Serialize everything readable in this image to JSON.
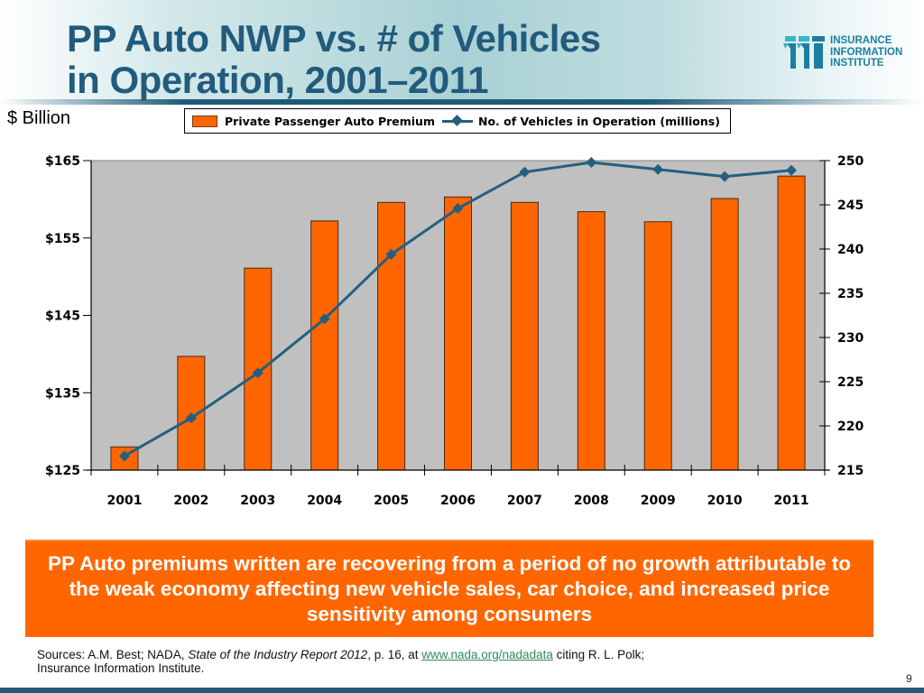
{
  "slide": {
    "title_line1": "PP Auto NWP vs. # of Vehicles",
    "title_line2": "in Operation, 2001–2011",
    "units_label": "$ Billion",
    "logo": {
      "line1": "INSURANCE",
      "line2": "INFORMATION",
      "line3": "INSTITUTE",
      "icon": "iii-logo-icon"
    },
    "callout": "PP Auto premiums written are recovering from a period of no growth attributable to the weak economy affecting new vehicle sales, car choice, and increased price sensitivity among consumers",
    "sources": {
      "prefix": "Sources: A.M. Best; NADA, ",
      "report_title": "State of the Industry Report 2012",
      "mid": ", p. 16, at ",
      "link_text": "www.nada.org/nadadata",
      "suffix": " citing R. L. Polk;",
      "line2": "Insurance Information Institute."
    },
    "page_number": "9",
    "colors": {
      "bar": "#ff6600",
      "line": "#245f80",
      "title": "#225b7c",
      "plot_bg": "#c0c0c0",
      "callout": "#ff6600"
    }
  },
  "chart_data": {
    "type": "bar",
    "title": "PP Auto NWP vs. # of Vehicles in Operation, 2001–2011",
    "xlabel": "",
    "ylabel": "$ Billion",
    "y2label": "",
    "categories": [
      "2001",
      "2002",
      "2003",
      "2004",
      "2005",
      "2006",
      "2007",
      "2008",
      "2009",
      "2010",
      "2011"
    ],
    "series": [
      {
        "name": "Private Passenger Auto Premium",
        "type": "bar",
        "axis": "left",
        "values": [
          128.0,
          139.7,
          151.1,
          157.2,
          159.6,
          160.3,
          159.6,
          158.4,
          157.1,
          160.1,
          163.0
        ]
      },
      {
        "name": "No. of Vehicles in Operation (millions)",
        "type": "line",
        "axis": "right",
        "values": [
          216.6,
          220.9,
          226.0,
          232.1,
          239.4,
          244.6,
          248.7,
          249.8,
          249.0,
          248.2,
          248.9
        ]
      }
    ],
    "ylim": [
      125,
      165
    ],
    "yticks": [
      125,
      135,
      145,
      155,
      165
    ],
    "ytick_labels": [
      "$125",
      "$135",
      "$145",
      "$155",
      "$165"
    ],
    "y2lim": [
      215,
      250
    ],
    "y2ticks": [
      215,
      220,
      225,
      230,
      235,
      240,
      245,
      250
    ],
    "y2tick_labels": [
      "215",
      "220",
      "225",
      "230",
      "235",
      "240",
      "245",
      "250"
    ],
    "grid": false,
    "legend": {
      "position": "top",
      "entries": [
        "Private Passenger Auto Premium",
        "No. of Vehicles in Operation (millions)"
      ]
    }
  }
}
